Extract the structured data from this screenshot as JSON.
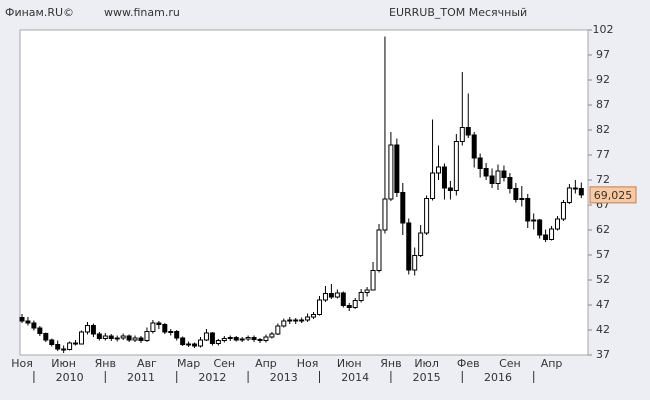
{
  "chart_data": {
    "type": "candlestick",
    "source": "Финам.RU©",
    "site": "www.finam.ru",
    "title": "EURRUB_TOM Месячный",
    "categories": [
      "Ноя",
      null,
      null,
      null,
      null,
      null,
      null,
      "Июн",
      null,
      null,
      null,
      null,
      null,
      null,
      "Янв",
      null,
      null,
      null,
      null,
      null,
      null,
      "Авг",
      null,
      null,
      null,
      null,
      null,
      null,
      "Мар",
      null,
      null,
      null,
      null,
      null,
      "Сен",
      null,
      null,
      null,
      null,
      null,
      null,
      "Апр",
      null,
      null,
      null,
      null,
      null,
      null,
      "Ноя",
      null,
      null,
      null,
      null,
      null,
      null,
      "Июн",
      null,
      null,
      null,
      null,
      null,
      null,
      "Янв",
      null,
      null,
      null,
      null,
      null,
      "Июл",
      null,
      null,
      null,
      null,
      null,
      null,
      "Фев",
      null,
      null,
      null,
      null,
      null,
      null,
      "Сен",
      null,
      null,
      null,
      null,
      null,
      null,
      "Апр",
      null,
      null,
      null,
      null,
      null
    ],
    "year_groups": [
      {
        "value": 2,
        "label": "2010"
      },
      {
        "value": 14,
        "label": "2011"
      },
      {
        "value": 26,
        "label": "2012"
      },
      {
        "value": 38,
        "label": "2013"
      },
      {
        "value": 50,
        "label": "2014"
      },
      {
        "value": 62,
        "label": "2015"
      },
      {
        "value": 74,
        "label": "2016"
      }
    ],
    "open": [
      44.5,
      43.8,
      43.4,
      42.4,
      41.3,
      40.0,
      39.1,
      38.2,
      38.1,
      39.4,
      39.2,
      41.6,
      42.9,
      41.2,
      40.3,
      40.8,
      40.3,
      40.4,
      40.8,
      40.0,
      40.4,
      39.9,
      41.7,
      43.4,
      43.1,
      41.6,
      41.7,
      40.4,
      39.1,
      39.2,
      38.8,
      40.0,
      41.4,
      39.3,
      39.9,
      40.3,
      40.5,
      40.0,
      40.2,
      40.5,
      40.1,
      39.9,
      40.6,
      41.2,
      42.8,
      43.8,
      44.0,
      43.8,
      44.0,
      44.6,
      45.1,
      48.0,
      49.3,
      48.6,
      49.4,
      46.9,
      46.5,
      47.9,
      49.5,
      50.0,
      53.9,
      62.0,
      68.2,
      79.0,
      69.5,
      63.4,
      54.0,
      56.9,
      61.4,
      68.3,
      73.4,
      74.6,
      70.4,
      69.9,
      79.7,
      82.5,
      81.0,
      76.4,
      74.3,
      72.8,
      71.3,
      73.8,
      72.5,
      70.3,
      68.1,
      68.3,
      63.8,
      64.0,
      61.0,
      60.1,
      62.2,
      64.2,
      67.5,
      70.4,
      70.3
    ],
    "high": [
      45.2,
      44.6,
      43.9,
      42.8,
      41.5,
      40.3,
      39.9,
      38.9,
      39.7,
      40.0,
      41.9,
      43.6,
      43.3,
      41.6,
      41.4,
      41.2,
      40.9,
      41.3,
      41.1,
      40.9,
      40.8,
      42.5,
      44.0,
      43.8,
      43.4,
      42.2,
      42.0,
      40.7,
      39.7,
      39.5,
      40.6,
      42.2,
      41.6,
      40.2,
      40.8,
      40.9,
      40.8,
      40.6,
      40.9,
      40.9,
      40.4,
      41.1,
      41.6,
      43.3,
      44.3,
      44.6,
      44.4,
      44.5,
      45.3,
      45.6,
      48.8,
      50.8,
      51.2,
      50.1,
      49.7,
      47.4,
      48.4,
      50.2,
      50.6,
      55.6,
      63.2,
      100.7,
      81.6,
      80.3,
      71.4,
      64.3,
      58.5,
      63.0,
      68.9,
      84.1,
      78.9,
      75.3,
      71.8,
      81.2,
      93.6,
      89.3,
      81.6,
      77.3,
      75.4,
      74.3,
      75.1,
      74.9,
      73.4,
      71.4,
      70.8,
      69.2,
      65.3,
      64.2,
      62.1,
      62.8,
      64.8,
      68.0,
      71.2,
      72.0,
      71.5
    ],
    "low": [
      43.4,
      42.9,
      41.9,
      40.8,
      39.6,
      38.7,
      37.8,
      37.4,
      37.9,
      38.9,
      39.1,
      41.1,
      40.6,
      39.9,
      39.9,
      39.8,
      39.7,
      40.0,
      39.6,
      39.6,
      39.4,
      39.6,
      41.3,
      42.2,
      41.2,
      40.9,
      39.9,
      38.8,
      38.6,
      38.4,
      38.5,
      39.8,
      38.9,
      38.9,
      39.5,
      39.8,
      39.7,
      39.6,
      39.8,
      39.6,
      39.4,
      39.5,
      40.3,
      41.0,
      42.5,
      43.2,
      43.2,
      43.4,
      43.6,
      44.2,
      44.9,
      47.6,
      48.2,
      48.3,
      46.5,
      45.8,
      46.2,
      47.5,
      48.7,
      49.9,
      53.5,
      61.3,
      67.8,
      68.6,
      61.0,
      53.1,
      52.9,
      56.6,
      61.0,
      67.9,
      72.0,
      68.1,
      68.1,
      68.9,
      78.9,
      80.4,
      74.5,
      72.5,
      72.0,
      70.4,
      70.0,
      71.7,
      69.3,
      67.5,
      66.7,
      62.4,
      62.1,
      60.3,
      59.6,
      59.9,
      61.9,
      63.8,
      67.2,
      69.3,
      68.4
    ],
    "close": [
      43.8,
      43.4,
      42.4,
      41.3,
      40.0,
      39.1,
      38.2,
      38.1,
      39.4,
      39.2,
      41.6,
      42.9,
      41.2,
      40.3,
      40.8,
      40.3,
      40.4,
      40.8,
      40.0,
      40.4,
      39.9,
      41.7,
      43.4,
      43.1,
      41.6,
      41.7,
      40.4,
      39.1,
      39.2,
      38.8,
      40.0,
      41.4,
      39.3,
      39.9,
      40.3,
      40.5,
      40.0,
      40.2,
      40.5,
      40.1,
      39.9,
      40.6,
      41.2,
      42.8,
      43.8,
      44.0,
      43.8,
      44.0,
      44.6,
      45.1,
      48.0,
      49.3,
      48.6,
      49.4,
      46.9,
      46.5,
      47.9,
      49.5,
      50.0,
      53.9,
      62.0,
      68.2,
      79.0,
      69.5,
      63.4,
      54.0,
      56.9,
      61.4,
      68.3,
      73.4,
      74.6,
      70.4,
      69.9,
      79.7,
      82.5,
      81.0,
      76.4,
      74.3,
      72.8,
      71.3,
      73.8,
      72.5,
      70.3,
      68.1,
      68.3,
      63.8,
      64.0,
      61.0,
      60.1,
      62.2,
      64.2,
      67.5,
      70.4,
      70.3,
      69.025
    ],
    "last_price": {
      "value": 69.025,
      "label": "69,025"
    },
    "up_color": "#ffffff",
    "down_color": "#000000",
    "price_box_color": "#fbc9a0",
    "ylim": [
      37,
      102
    ],
    "yticks": [
      37,
      42,
      47,
      52,
      57,
      62,
      67,
      72,
      77,
      82,
      87,
      92,
      97,
      102
    ]
  }
}
